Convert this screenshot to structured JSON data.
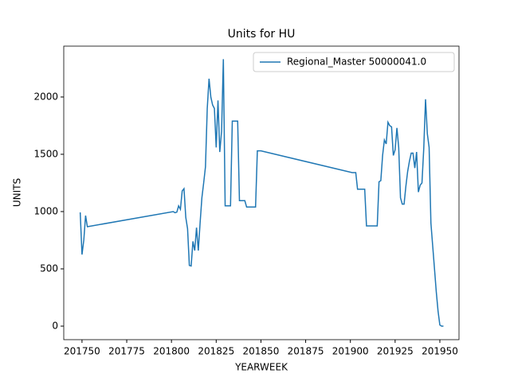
{
  "chart_data": {
    "type": "line",
    "title": "Units for HU",
    "xlabel": "YEARWEEK",
    "ylabel": "UNITS",
    "x": [
      201749,
      201750,
      201751,
      201752,
      201753,
      201801,
      201802,
      201803,
      201804,
      201805,
      201806,
      201807,
      201808,
      201809,
      201810,
      201811,
      201812,
      201813,
      201814,
      201815,
      201816,
      201817,
      201818,
      201819,
      201820,
      201821,
      201822,
      201823,
      201824,
      201825,
      201826,
      201827,
      201828,
      201829,
      201830,
      201831,
      201832,
      201833,
      201834,
      201835,
      201836,
      201837,
      201838,
      201839,
      201840,
      201841,
      201842,
      201843,
      201844,
      201845,
      201846,
      201847,
      201848,
      201849,
      201850,
      201901,
      201902,
      201903,
      201904,
      201905,
      201906,
      201907,
      201908,
      201909,
      201910,
      201911,
      201912,
      201913,
      201914,
      201915,
      201916,
      201917,
      201918,
      201919,
      201920,
      201921,
      201922,
      201923,
      201924,
      201925,
      201926,
      201927,
      201928,
      201929,
      201930,
      201931,
      201932,
      201933,
      201934,
      201935,
      201936,
      201937,
      201938,
      201939,
      201940,
      201941,
      201942,
      201943,
      201944,
      201945,
      201946,
      201947,
      201948,
      201949,
      201950,
      201951,
      201952
    ],
    "series": [
      {
        "name": "Regional_Master 50000041.0",
        "color": "#1f77b4",
        "values": [
          993,
          625,
          750,
          965,
          868,
          1000,
          990,
          995,
          1050,
          1020,
          1180,
          1200,
          950,
          850,
          530,
          525,
          740,
          660,
          860,
          660,
          900,
          1120,
          1250,
          1390,
          1900,
          2160,
          2000,
          1930,
          1900,
          1560,
          1970,
          1520,
          1700,
          2330,
          1050,
          1050,
          1050,
          1050,
          1790,
          1790,
          1790,
          1790,
          1095,
          1095,
          1095,
          1095,
          1040,
          1040,
          1040,
          1040,
          1040,
          1040,
          1530,
          1530,
          1530,
          1340,
          1340,
          1340,
          1195,
          1195,
          1195,
          1195,
          1195,
          875,
          875,
          875,
          875,
          875,
          875,
          875,
          1260,
          1270,
          1490,
          1625,
          1590,
          1780,
          1750,
          1740,
          1490,
          1540,
          1730,
          1560,
          1120,
          1065,
          1065,
          1220,
          1350,
          1440,
          1510,
          1510,
          1380,
          1520,
          1170,
          1230,
          1250,
          1550,
          1980,
          1680,
          1560,
          900,
          700,
          500,
          300,
          130,
          10,
          0,
          0
        ]
      }
    ],
    "xlim": [
      201739.8,
      201960.7
    ],
    "ylim": [
      -118,
      2444
    ],
    "xticks": [
      201750,
      201775,
      201800,
      201825,
      201850,
      201875,
      201900,
      201925,
      201950
    ],
    "yticks": [
      0,
      500,
      1000,
      1500,
      2000
    ],
    "legend": "upper right"
  }
}
